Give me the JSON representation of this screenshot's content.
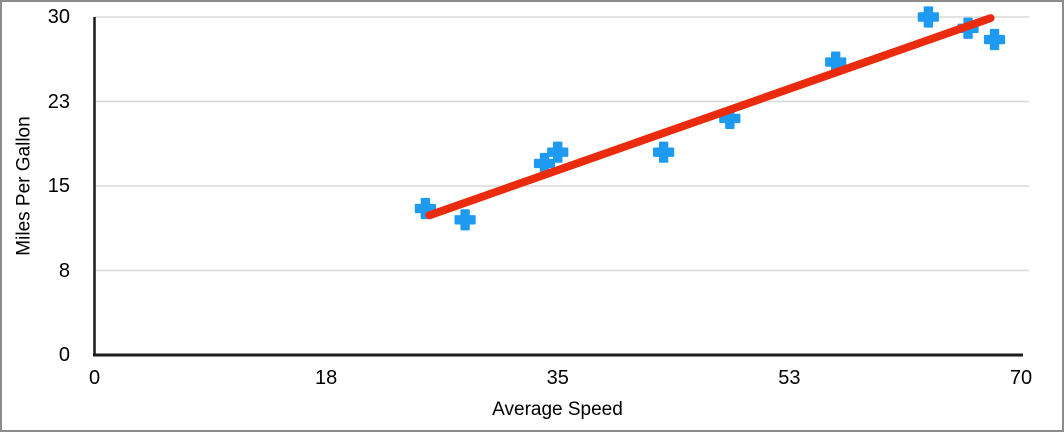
{
  "chart_data": {
    "type": "scatter",
    "title": "",
    "xlabel": "Average Speed",
    "ylabel": "Miles Per Gallon",
    "x_tick_labels": [
      "0",
      "18",
      "35",
      "53",
      "70"
    ],
    "y_tick_labels": [
      "0",
      "8",
      "15",
      "23",
      "30"
    ],
    "xlim": [
      0,
      70
    ],
    "ylim": [
      0,
      30
    ],
    "grid": true,
    "legend": "none",
    "marker_shape": "plus",
    "points": [
      {
        "x": 25,
        "y": 13
      },
      {
        "x": 28,
        "y": 12
      },
      {
        "x": 34,
        "y": 17
      },
      {
        "x": 35,
        "y": 18
      },
      {
        "x": 43,
        "y": 18
      },
      {
        "x": 48,
        "y": 21
      },
      {
        "x": 56,
        "y": 26
      },
      {
        "x": 63,
        "y": 30
      },
      {
        "x": 66,
        "y": 29
      },
      {
        "x": 68,
        "y": 28
      }
    ],
    "trendline": {
      "x1": 25.3,
      "y1": 12.4,
      "x2": 67.7,
      "y2": 29.9
    },
    "colors": {
      "marker": "#1E9BF0",
      "trendline": "#EB2B0D",
      "gridline": "#D8D8D8",
      "axis": "#1C1C1C",
      "text": "#000000",
      "frame_border": "#8C8C8C",
      "background": "#FFFFFF"
    }
  }
}
